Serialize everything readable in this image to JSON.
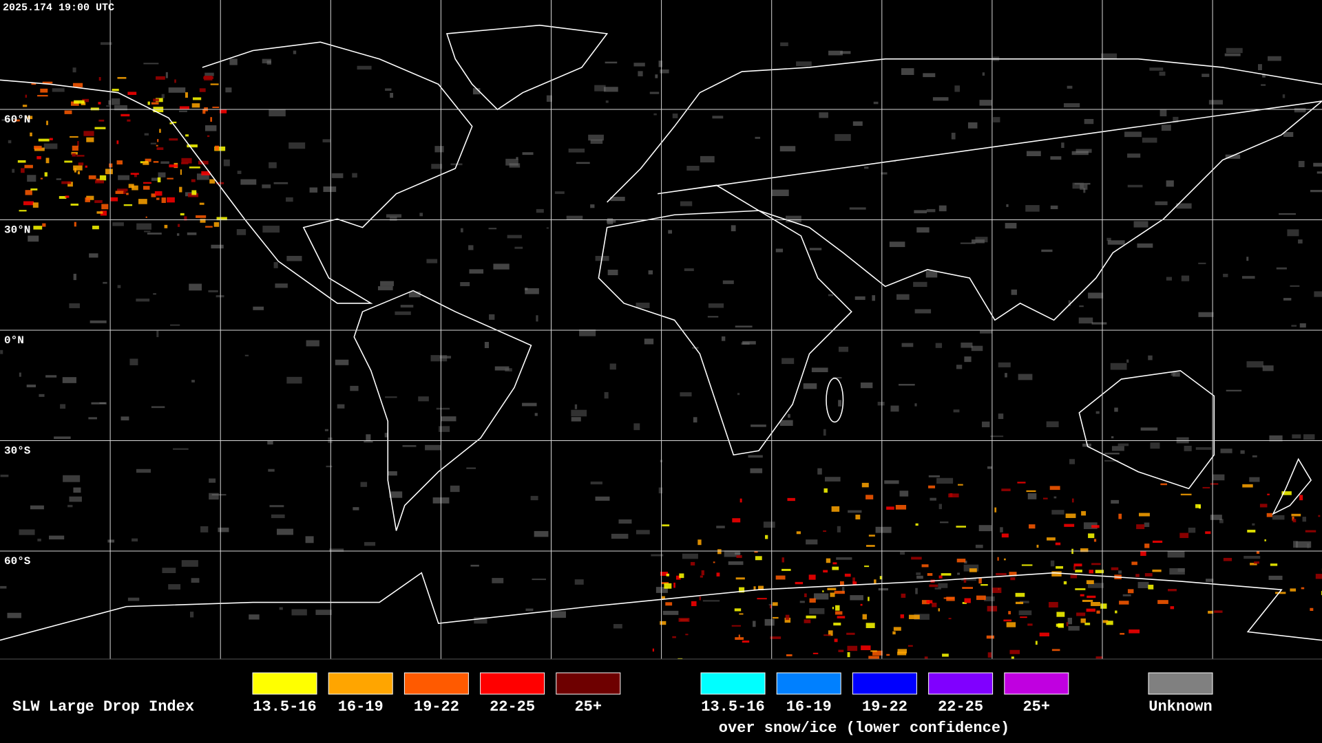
{
  "header": {
    "timestamp": "2025.174 19:00 UTC"
  },
  "grid": {
    "lat_labels": [
      "60°N",
      "30°N",
      "0°N",
      "30°S",
      "60°S"
    ]
  },
  "legend": {
    "title": "SLW Large Drop Index",
    "items": [
      {
        "label": "13.5-16",
        "color": "#ffff00"
      },
      {
        "label": "16-19",
        "color": "#ffa500"
      },
      {
        "label": "19-22",
        "color": "#ff5a00"
      },
      {
        "label": "22-25",
        "color": "#ff0000"
      },
      {
        "label": "25+",
        "color": "#6e0000"
      }
    ],
    "ice_items": [
      {
        "label": "13.5-16",
        "color": "#00ffff"
      },
      {
        "label": "16-19",
        "color": "#0080ff"
      },
      {
        "label": "19-22",
        "color": "#0000ff"
      },
      {
        "label": "22-25",
        "color": "#8000ff"
      },
      {
        "label": "25+",
        "color": "#c000e0"
      }
    ],
    "ice_note": "over snow/ice (lower confidence)",
    "unknown": {
      "label": "Unknown",
      "color": "#808080"
    }
  }
}
